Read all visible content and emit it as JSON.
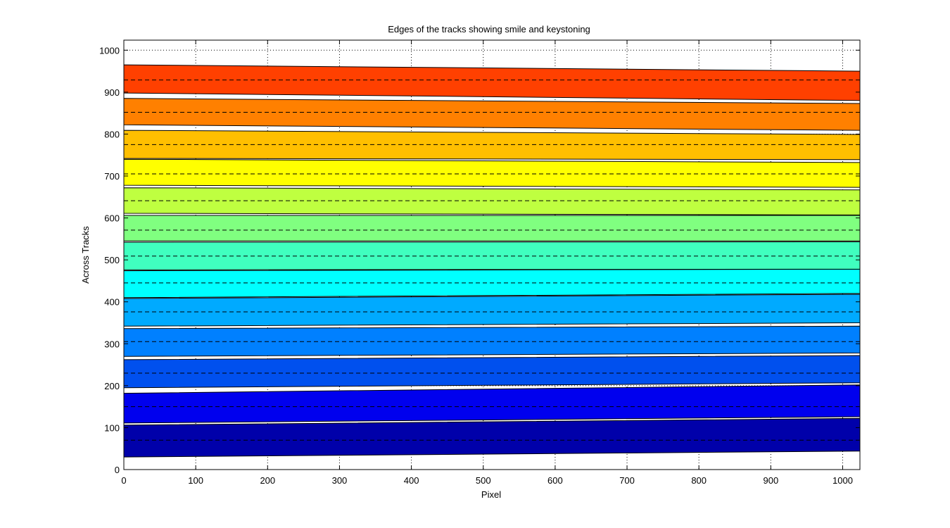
{
  "chart_data": {
    "type": "area",
    "title": "Edges of the tracks showing smile and keystoning",
    "xlabel": "Pixel",
    "ylabel": "Across Tracks",
    "xlim": [
      0,
      1024
    ],
    "ylim": [
      0,
      1024
    ],
    "xticks": [
      0,
      100,
      200,
      300,
      400,
      500,
      600,
      700,
      800,
      900,
      1000
    ],
    "yticks": [
      0,
      100,
      200,
      300,
      400,
      500,
      600,
      700,
      800,
      900,
      1000
    ],
    "grid": true,
    "x": [
      0,
      1024
    ],
    "tracks": [
      {
        "lower": [
          30,
          44
        ],
        "upper": [
          106,
          122
        ],
        "center": [
          70,
          70
        ],
        "color": "#0000aa"
      },
      {
        "lower": [
          111,
          126
        ],
        "upper": [
          182,
          202
        ],
        "center": [
          150,
          150
        ],
        "color": "#0000ee"
      },
      {
        "lower": [
          195,
          207
        ],
        "upper": [
          262,
          272
        ],
        "center": [
          230,
          230
        ],
        "color": "#0050ee"
      },
      {
        "lower": [
          270,
          278
        ],
        "upper": [
          336,
          342
        ],
        "center": [
          305,
          305
        ],
        "color": "#0080ff"
      },
      {
        "lower": [
          342,
          350
        ],
        "upper": [
          408,
          418
        ],
        "center": [
          376,
          376
        ],
        "color": "#00aaff"
      },
      {
        "lower": [
          410,
          420
        ],
        "upper": [
          474,
          478
        ],
        "center": [
          445,
          445
        ],
        "color": "#00ffff"
      },
      {
        "lower": [
          476,
          478
        ],
        "upper": [
          542,
          543
        ],
        "center": [
          509,
          509
        ],
        "color": "#40ffbf"
      },
      {
        "lower": [
          545,
          545
        ],
        "upper": [
          606,
          606
        ],
        "center": [
          571,
          571
        ],
        "color": "#80ff80"
      },
      {
        "lower": [
          611,
          607
        ],
        "upper": [
          672,
          667
        ],
        "center": [
          641,
          641
        ],
        "color": "#bfff40"
      },
      {
        "lower": [
          678,
          673
        ],
        "upper": [
          740,
          732
        ],
        "center": [
          705,
          705
        ],
        "color": "#ffff00"
      },
      {
        "lower": [
          742,
          739
        ],
        "upper": [
          809,
          799
        ],
        "center": [
          775,
          775
        ],
        "color": "#ffbf00"
      },
      {
        "lower": [
          822,
          809
        ],
        "upper": [
          885,
          873
        ],
        "center": [
          852,
          852
        ],
        "color": "#ff8000"
      },
      {
        "lower": [
          898,
          880
        ],
        "upper": [
          965,
          950
        ],
        "center": [
          929,
          929
        ],
        "color": "#ff4000"
      }
    ]
  }
}
